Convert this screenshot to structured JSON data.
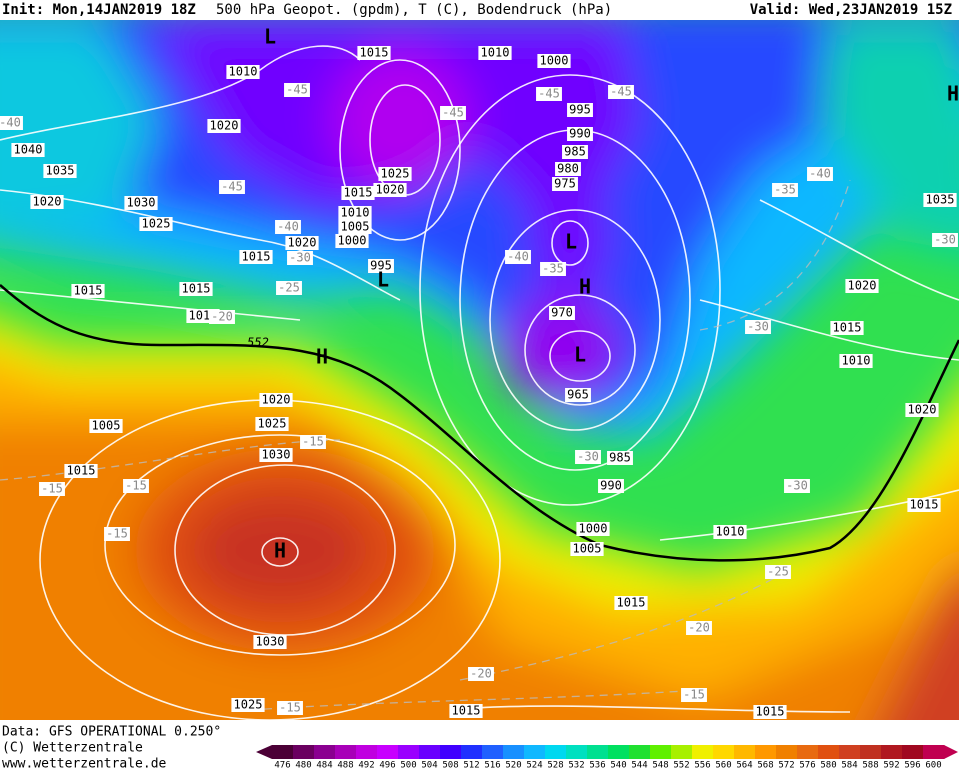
{
  "header": {
    "init": "Init: Mon,14JAN2019 18Z",
    "field": "500 hPa Geopot. (gpdm), T (C), Bodendruck (hPa)",
    "valid": "Valid: Wed,23JAN2019 15Z"
  },
  "map": {
    "contour_label": "552",
    "pressure_labels": [
      "1015",
      "1010",
      "1000",
      "1010",
      "995",
      "990",
      "985",
      "980",
      "975",
      "1020",
      "1040",
      "1035",
      "1025",
      "1020",
      "1015",
      "1010",
      "1005",
      "1000",
      "1020",
      "1020",
      "1030",
      "1025",
      "1015",
      "995",
      "1015",
      "1015",
      "1010",
      "970",
      "1020",
      "1015",
      "1010",
      "1005",
      "1020",
      "1025",
      "1030",
      "965",
      "985",
      "990",
      "1015",
      "1000",
      "1005",
      "1010",
      "1015",
      "1020",
      "1035",
      "1015",
      "1030",
      "1025",
      "1015",
      "1015"
    ],
    "temperature_labels": [
      "-45",
      "-45",
      "-45",
      "-45",
      "-40",
      "-45",
      "-40",
      "-30",
      "-25",
      "-40",
      "-35",
      "-35",
      "-40",
      "-30",
      "-30",
      "-30",
      "-30",
      "-15",
      "-15",
      "-15",
      "-15",
      "-25",
      "-20",
      "-20",
      "-15",
      "-15",
      "-20"
    ],
    "centers": [
      "L",
      "H",
      "L",
      "H",
      "L",
      "H",
      "L",
      "H"
    ]
  },
  "footer": {
    "data": "Data: GFS OPERATIONAL 0.250°",
    "copyright": "(C) Wetterzentrale",
    "url": "www.wetterzentrale.de"
  },
  "colorbar": {
    "ticks": [
      476,
      480,
      484,
      488,
      492,
      496,
      500,
      504,
      508,
      512,
      516,
      520,
      524,
      528,
      532,
      536,
      540,
      544,
      548,
      552,
      556,
      560,
      564,
      568,
      572,
      576,
      580,
      584,
      588,
      592,
      596,
      600
    ],
    "colors": [
      "#4b0036",
      "#6a0060",
      "#8a0090",
      "#a800b8",
      "#c000e0",
      "#c800ff",
      "#9a00ff",
      "#6a00ff",
      "#4000ff",
      "#2030ff",
      "#2060ff",
      "#1890ff",
      "#10b8ff",
      "#00d8f0",
      "#00e0c0",
      "#00e090",
      "#00e060",
      "#20e030",
      "#60f000",
      "#a8f000",
      "#f0f000",
      "#ffd800",
      "#ffb800",
      "#ff9800",
      "#f08000",
      "#e86a10",
      "#e05010",
      "#d04020",
      "#c03020",
      "#b01820",
      "#a00820",
      "#c00050"
    ]
  }
}
